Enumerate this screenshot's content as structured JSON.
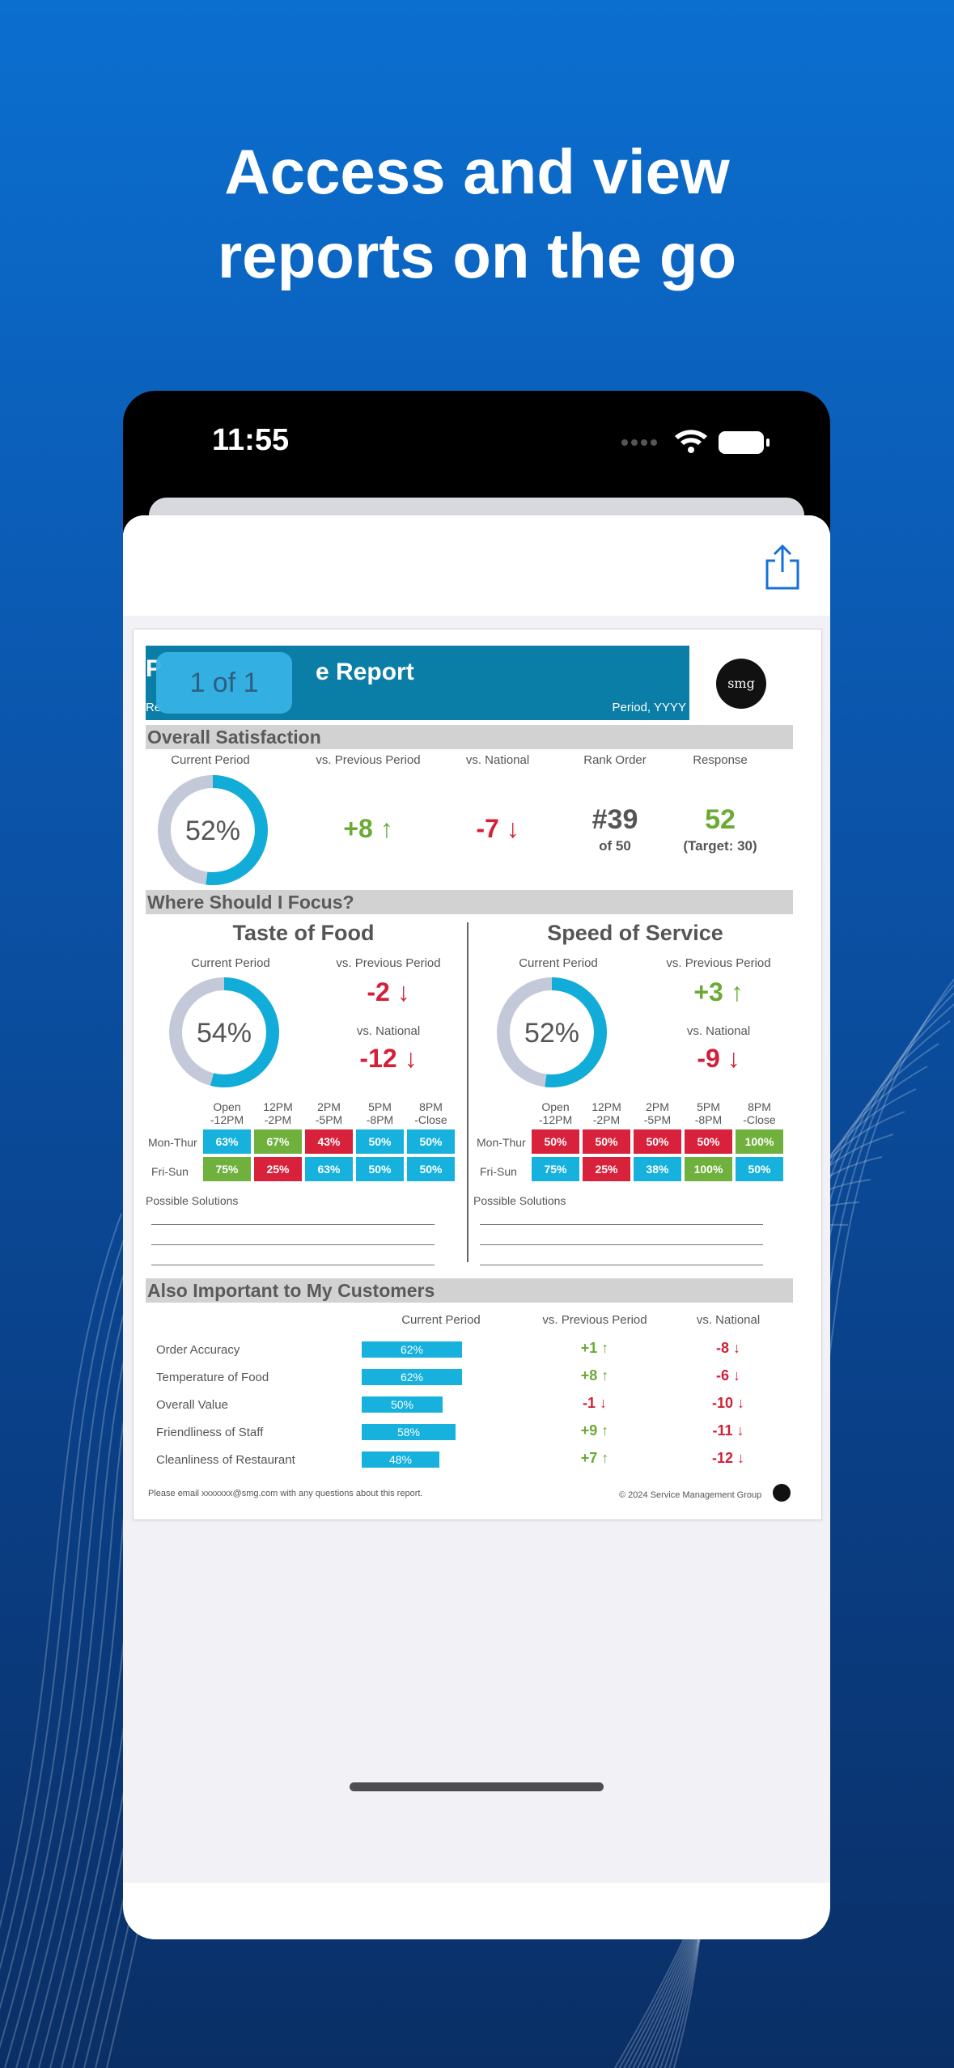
{
  "headline": [
    "Access and view",
    "reports on the go"
  ],
  "status": {
    "time": "11:55"
  },
  "icons": {
    "share": "share-icon",
    "wifi": "wifi-icon",
    "battery": "battery-icon"
  },
  "report": {
    "badge": "1 of 1",
    "title_visible": "e Report",
    "title_prefix": "P",
    "subtitle_prefix": "Re",
    "period": "Period, YYYY",
    "logo": "smg",
    "overall": {
      "heading": "Overall Satisfaction",
      "columns": [
        "Current Period",
        "vs. Previous Period",
        "vs. National",
        "Rank Order",
        "Response"
      ],
      "current_pct": 52,
      "current_label": "52%",
      "vs_prev": "+8",
      "vs_nat": "-7",
      "rank": "#39",
      "rank_of": "of 50",
      "response": "52",
      "target": "(Target: 30)"
    },
    "focus": {
      "heading": "Where Should I Focus?",
      "left": {
        "title": "Taste of Food",
        "current_label": "Current Period",
        "prev_label": "vs. Previous Period",
        "nat_label": "vs. National",
        "pct": 54,
        "pct_label": "54%",
        "vs_prev": "-2",
        "vs_nat": "-12",
        "rows": [
          {
            "label": "Mon-Thur",
            "cells": [
              [
                "63%",
                "blue"
              ],
              [
                "67%",
                "green"
              ],
              [
                "43%",
                "red"
              ],
              [
                "50%",
                "blue"
              ],
              [
                "50%",
                "blue"
              ]
            ]
          },
          {
            "label": "Fri-Sun",
            "cells": [
              [
                "75%",
                "green"
              ],
              [
                "25%",
                "red"
              ],
              [
                "63%",
                "blue"
              ],
              [
                "50%",
                "blue"
              ],
              [
                "50%",
                "blue"
              ]
            ]
          }
        ]
      },
      "right": {
        "title": "Speed of Service",
        "current_label": "Current Period",
        "prev_label": "vs. Previous Period",
        "nat_label": "vs. National",
        "pct": 52,
        "pct_label": "52%",
        "vs_prev": "+3",
        "vs_nat": "-9",
        "rows": [
          {
            "label": "Mon-Thur",
            "cells": [
              [
                "50%",
                "red"
              ],
              [
                "50%",
                "red"
              ],
              [
                "50%",
                "red"
              ],
              [
                "50%",
                "red"
              ],
              [
                "100%",
                "green"
              ]
            ]
          },
          {
            "label": "Fri-Sun",
            "cells": [
              [
                "75%",
                "blue"
              ],
              [
                "25%",
                "red"
              ],
              [
                "38%",
                "blue"
              ],
              [
                "100%",
                "green"
              ],
              [
                "50%",
                "blue"
              ]
            ]
          }
        ]
      },
      "time_slots": [
        [
          "Open",
          "-12PM"
        ],
        [
          "12PM",
          "-2PM"
        ],
        [
          "2PM",
          "-5PM"
        ],
        [
          "5PM",
          "-8PM"
        ],
        [
          "8PM",
          "-Close"
        ]
      ],
      "solutions_label": "Possible Solutions"
    },
    "also": {
      "heading": "Also Important to My Customers",
      "col_current": "Current Period",
      "col_prev": "vs. Previous Period",
      "col_nat": "vs. National",
      "items": [
        {
          "label": "Order Accuracy",
          "pct": 62,
          "pct_label": "62%",
          "prev": "+1",
          "nat": "-8"
        },
        {
          "label": "Temperature of Food",
          "pct": 62,
          "pct_label": "62%",
          "prev": "+8",
          "nat": "-6"
        },
        {
          "label": "Overall Value",
          "pct": 50,
          "pct_label": "50%",
          "prev": "-1",
          "nat": "-10"
        },
        {
          "label": "Friendliness of Staff",
          "pct": 58,
          "pct_label": "58%",
          "prev": "+9",
          "nat": "-11"
        },
        {
          "label": "Cleanliness of Restaurant",
          "pct": 48,
          "pct_label": "48%",
          "prev": "+7",
          "nat": "-12"
        }
      ]
    },
    "footer_left": "Please email xxxxxxx@smg.com with any questions about this report.",
    "footer_right": "© 2024 Service Management Group"
  }
}
